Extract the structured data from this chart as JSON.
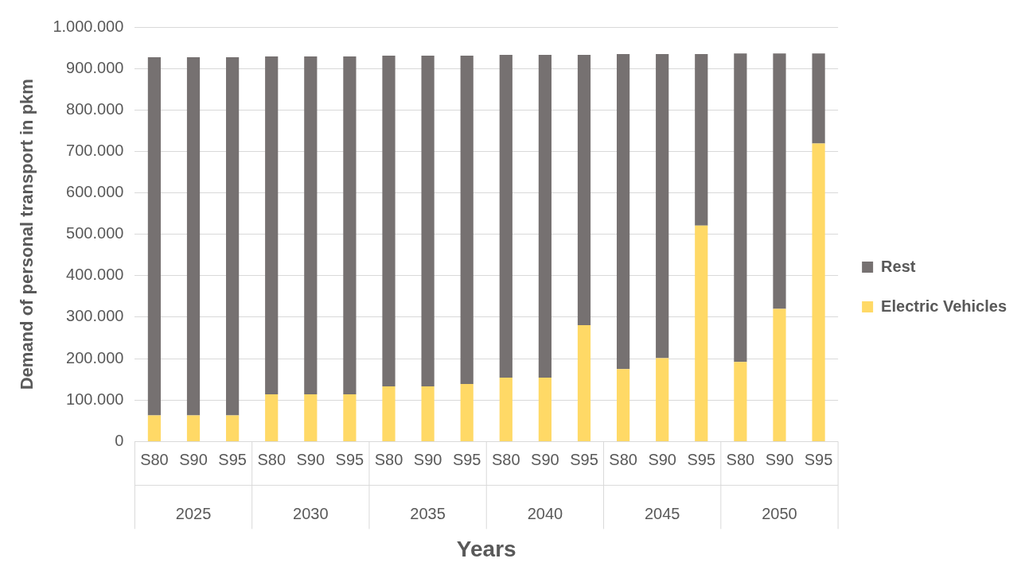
{
  "chart_data": {
    "type": "bar",
    "stacked": true,
    "xlabel": "Years",
    "ylabel": "Demand of personal transport in pkm",
    "categories": [
      "S80",
      "S90",
      "S95",
      "S80",
      "S90",
      "S95",
      "S80",
      "S90",
      "S95",
      "S80",
      "S90",
      "S95",
      "S80",
      "S90",
      "S95",
      "S80",
      "S90",
      "S95"
    ],
    "annotations": [
      "2025",
      "2030",
      "2035",
      "2040",
      "2045",
      "2050"
    ],
    "series": [
      {
        "name": "Electric Vehicles",
        "color": "#ffd966",
        "values": [
          63000,
          63000,
          63000,
          114000,
          114000,
          114000,
          133000,
          133000,
          139000,
          154000,
          154000,
          281000,
          175000,
          201000,
          521000,
          192000,
          320000,
          719000
        ]
      },
      {
        "name": "Rest",
        "color": "#767171",
        "values": [
          864000,
          864000,
          864000,
          815000,
          815000,
          815000,
          798000,
          798000,
          792000,
          779000,
          779000,
          652000,
          760000,
          734000,
          414000,
          744000,
          616000,
          217000
        ]
      }
    ],
    "ylim": [
      0,
      1000000
    ],
    "yticks": [
      0,
      {
        "value": 100000,
        "label": "100.000"
      },
      {
        "value": 200000,
        "label": "200.000"
      },
      {
        "value": 300000,
        "label": "300.000"
      },
      {
        "value": 400000,
        "label": "400.000"
      },
      {
        "value": 500000,
        "label": "500.000"
      },
      {
        "value": 600000,
        "label": "600.000"
      },
      {
        "value": 700000,
        "label": "700.000"
      },
      {
        "value": 800000,
        "label": "800.000"
      },
      {
        "value": 900000,
        "label": "900.000"
      },
      {
        "value": 1000000,
        "label": "1.000.000"
      }
    ],
    "grid": "y",
    "legend": "right"
  }
}
